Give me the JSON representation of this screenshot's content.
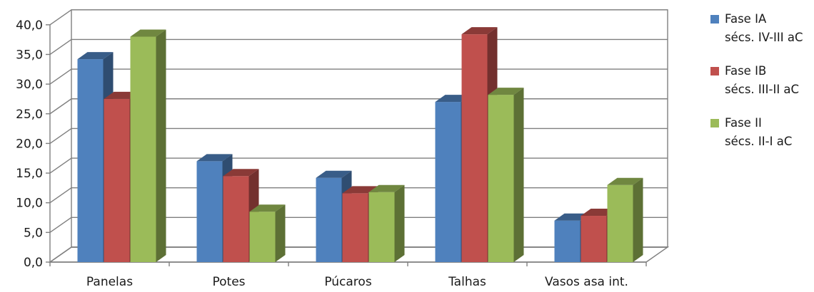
{
  "chart_data": {
    "type": "bar",
    "categories": [
      "Panelas",
      "Potes",
      "Púcaros",
      "Talhas",
      "Vasos asa int."
    ],
    "series": [
      {
        "name": "Fase IA",
        "name_line2": "sécs. IV-III aC",
        "color": "#4f81bd",
        "values": [
          34.2,
          17.0,
          14.2,
          27.0,
          7.0
        ]
      },
      {
        "name": "Fase IB",
        "name_line2": "sécs. III-II aC",
        "color": "#c0504d",
        "values": [
          27.5,
          14.5,
          11.6,
          38.4,
          7.8
        ]
      },
      {
        "name": "Fase II",
        "name_line2": "sécs. II-I aC",
        "color": "#9bbb59",
        "values": [
          38.0,
          8.5,
          11.8,
          28.2,
          13.0
        ]
      }
    ],
    "yticks": [
      "0,0",
      "5,0",
      "10,0",
      "15,0",
      "20,0",
      "25,0",
      "30,0",
      "35,0",
      "40,0"
    ],
    "ylim": [
      0,
      40
    ],
    "grid": true,
    "legend": "right",
    "style": "3d-clustered-column"
  }
}
